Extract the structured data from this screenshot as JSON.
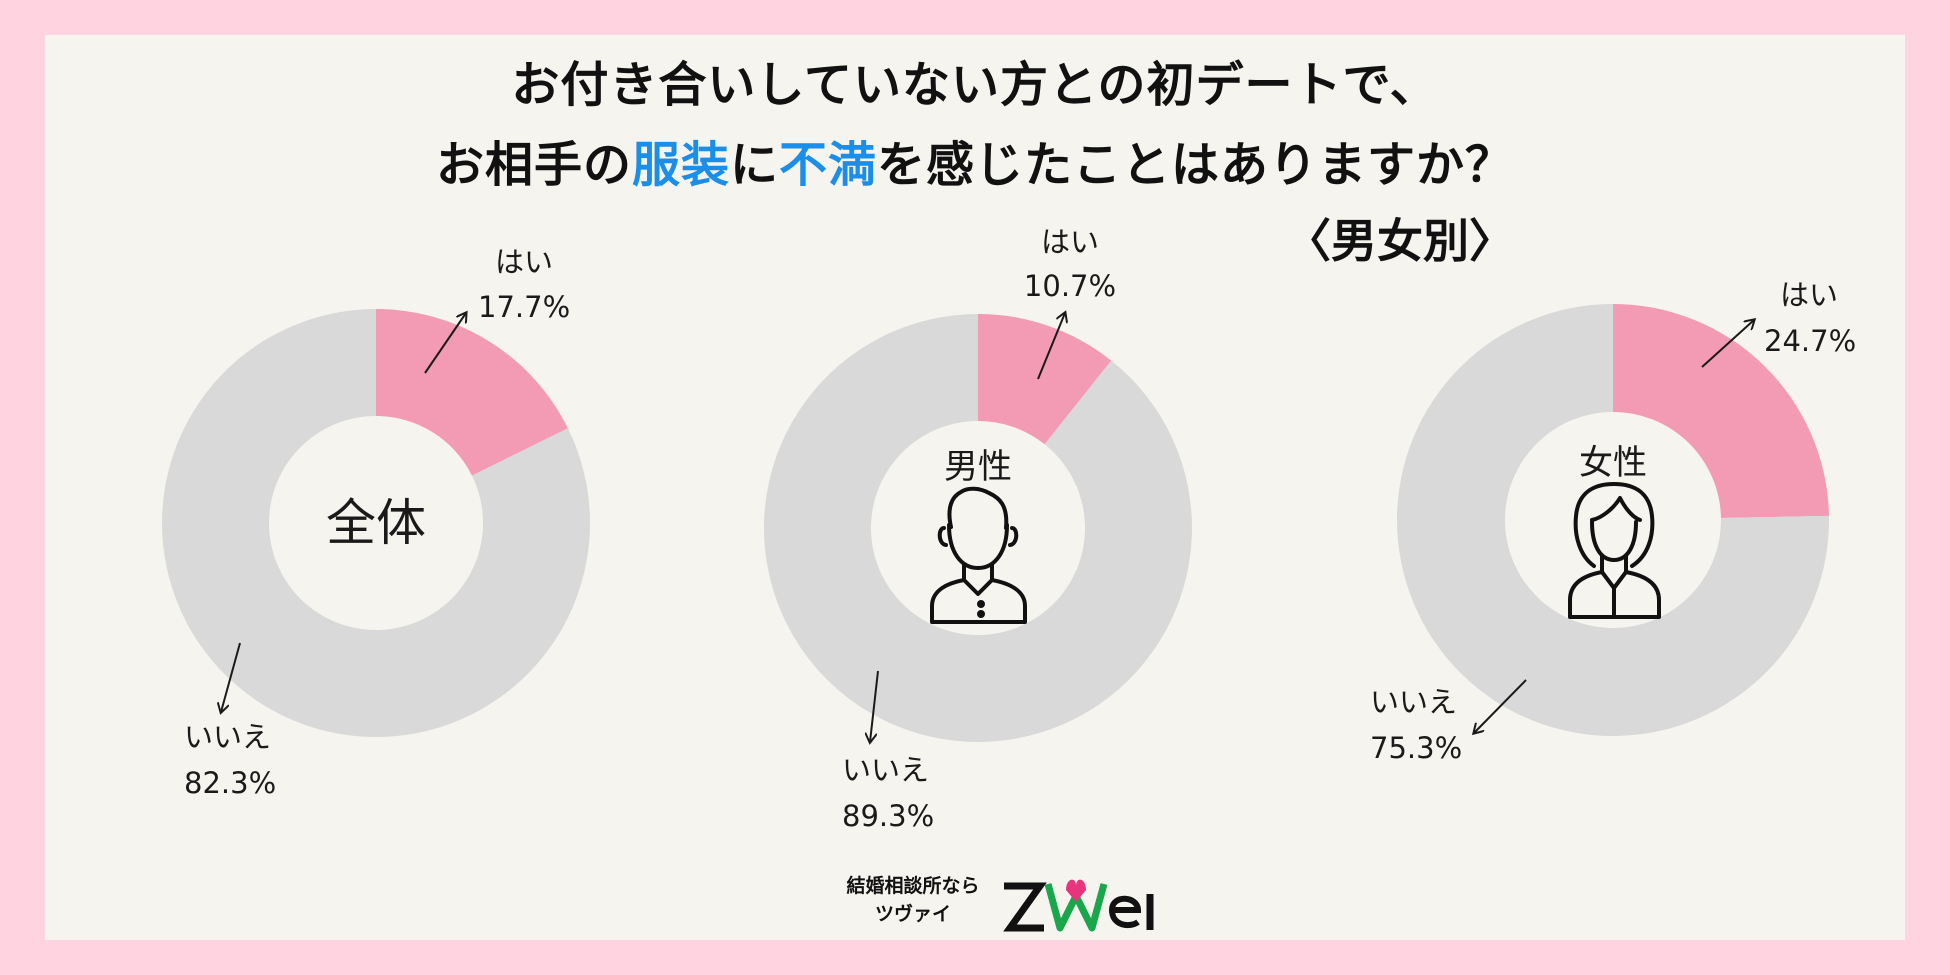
{
  "title_line1": "お付き合いしていない方との初デートで、",
  "title_line2_pre": "お相手の",
  "title_line2_hl1": "服装",
  "title_line2_mid": "に",
  "title_line2_hl2": "不満",
  "title_line2_post": "を感じたことはありますか？",
  "subtitle": "〈男女別〉",
  "colors": {
    "yes": "#f39bb4",
    "no": "#d9d9d9",
    "highlight": "#1a8ee8",
    "page_bg": "#ffd3df",
    "panel_bg": "#f6f4ef"
  },
  "chart_data": [
    {
      "type": "pie",
      "center_label": "全体",
      "categories": [
        "はい",
        "いいえ"
      ],
      "values": [
        17.7,
        82.3
      ],
      "labels": [
        "17.7%",
        "82.3%"
      ]
    },
    {
      "type": "pie",
      "center_label": "男性",
      "categories": [
        "はい",
        "いいえ"
      ],
      "values": [
        10.7,
        89.3
      ],
      "labels": [
        "10.7%",
        "89.3%"
      ],
      "icon": "man-icon"
    },
    {
      "type": "pie",
      "center_label": "女性",
      "categories": [
        "はい",
        "いいえ"
      ],
      "values": [
        24.7,
        75.3
      ],
      "labels": [
        "24.7%",
        "75.3%"
      ],
      "icon": "woman-icon"
    }
  ],
  "brand": {
    "line1": "結婚相談所なら",
    "line2": "ツヴァイ",
    "logo_text": "ZWEI"
  }
}
